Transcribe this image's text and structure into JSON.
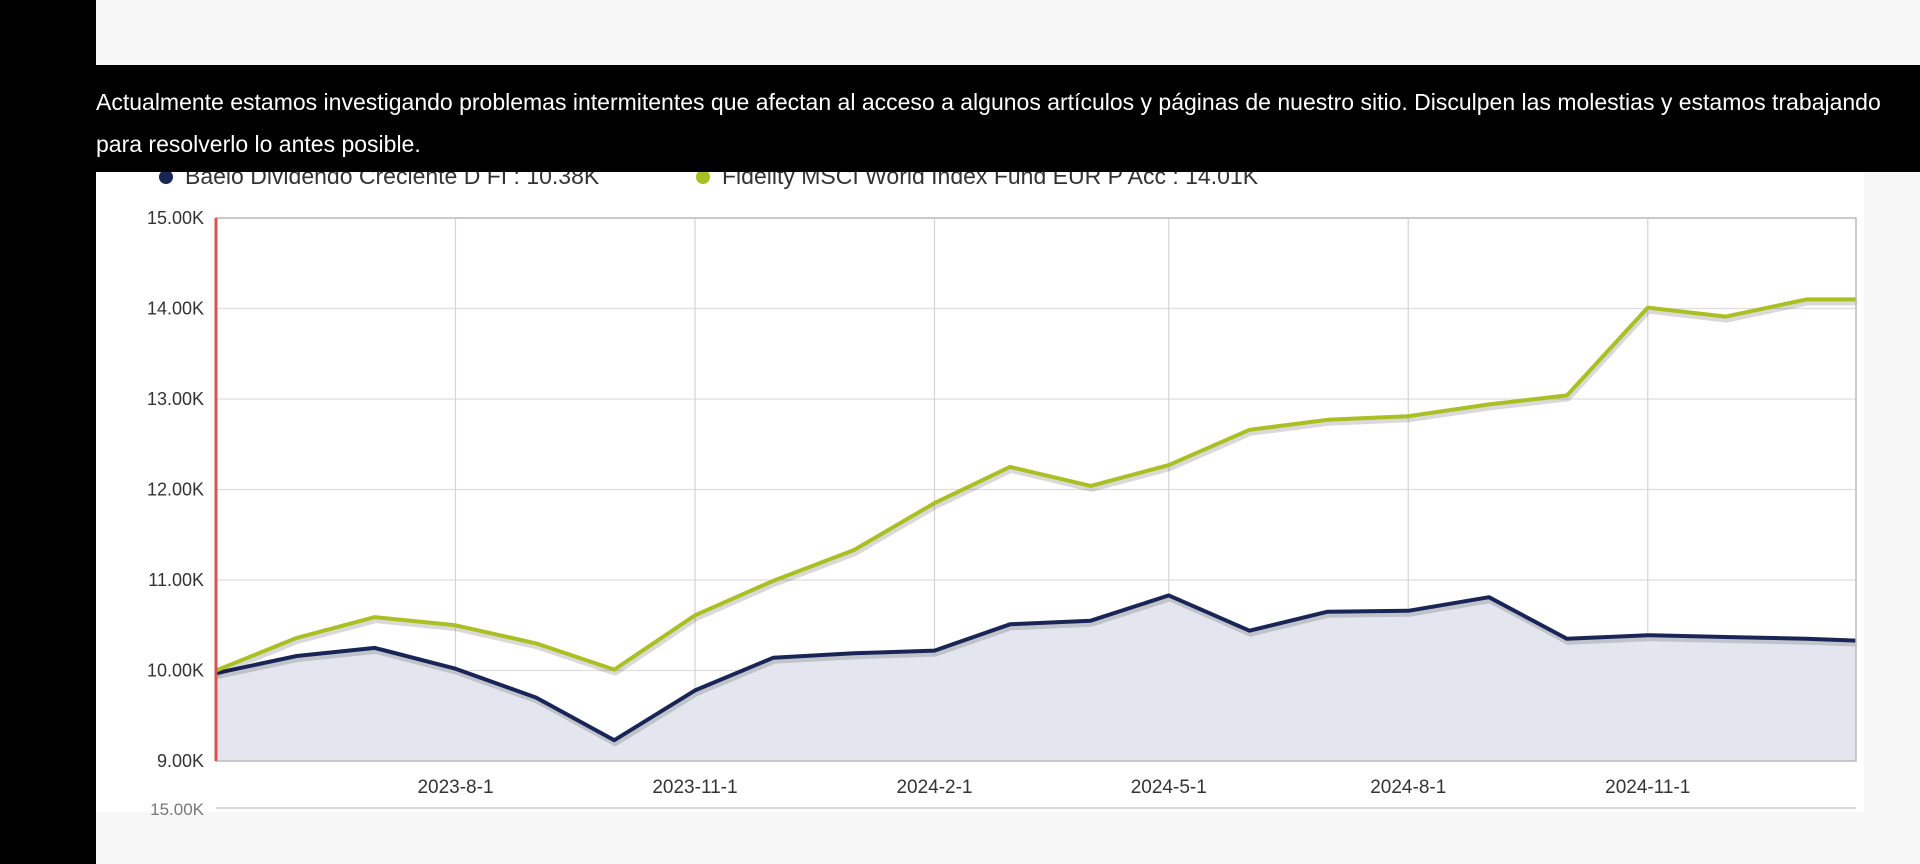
{
  "notice": {
    "text": "Actualmente estamos investigando problemas intermitentes que afectan al acceso a algunos artículos y páginas de nuestro sitio. Disculpen las molestias y estamos trabajando para resolverlo lo antes posible."
  },
  "chart_data": {
    "type": "line",
    "title": "",
    "xlabel": "",
    "ylabel": "",
    "ylim": [
      9000,
      15000
    ],
    "yticks": [
      "9.00K",
      "10.00K",
      "11.00K",
      "12.00K",
      "13.00K",
      "14.00K",
      "15.00K"
    ],
    "xticks": [
      "2023-8-1",
      "2023-11-1",
      "2024-2-1",
      "2024-5-1",
      "2024-8-1",
      "2024-11-1"
    ],
    "xlim": [
      "2023-5-1",
      "2025-1-20"
    ],
    "navigator_label": "15.00K",
    "legend_position": "top-left",
    "grid": true,
    "x": [
      "2023-5-1",
      "2023-6-1",
      "2023-7-1",
      "2023-8-1",
      "2023-9-1",
      "2023-10-1",
      "2023-11-1",
      "2023-12-1",
      "2024-1-1",
      "2024-2-1",
      "2024-3-1",
      "2024-4-1",
      "2024-5-1",
      "2024-6-1",
      "2024-7-1",
      "2024-8-1",
      "2024-9-1",
      "2024-10-1",
      "2024-11-1",
      "2024-12-1",
      "2025-1-1",
      "2025-1-20"
    ],
    "series": [
      {
        "name": "Baelo Dividendo Creciente D FI",
        "legend_value": "10.38K",
        "color": "#1a2557",
        "area": true,
        "values": [
          9970,
          10160,
          10250,
          10020,
          9700,
          9230,
          9780,
          10140,
          10190,
          10220,
          10510,
          10550,
          10830,
          10440,
          10650,
          10660,
          10810,
          10350,
          10390,
          10370,
          10350,
          10330
        ]
      },
      {
        "name": "Fidelity MSCI World Index Fund EUR P Acc",
        "legend_value": "14.01K",
        "color": "#a8c022",
        "area": false,
        "values": [
          10000,
          10360,
          10590,
          10500,
          10300,
          10010,
          10610,
          10990,
          11330,
          11850,
          12250,
          12040,
          12270,
          12660,
          12770,
          12810,
          12940,
          13040,
          14010,
          13910,
          14100,
          14100
        ]
      }
    ]
  }
}
